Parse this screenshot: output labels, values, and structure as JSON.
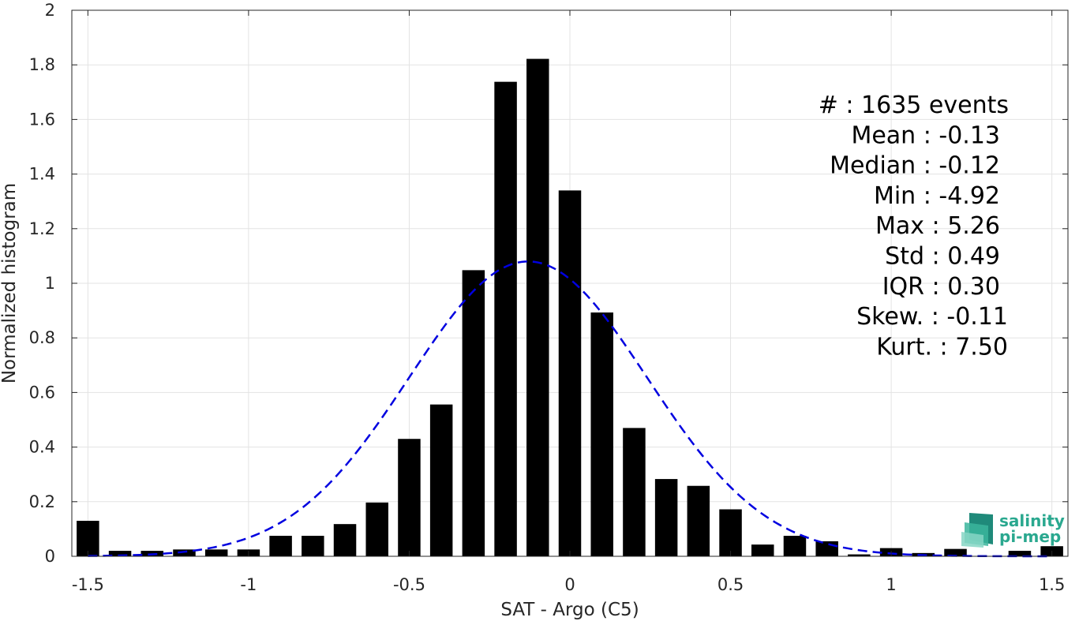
{
  "chart_data": {
    "type": "bar",
    "xlabel": "SAT - Argo (C5)",
    "ylabel": "Normalized histogram",
    "xlim": [
      -1.55,
      1.55
    ],
    "ylim": [
      0,
      2
    ],
    "xticks": [
      -1.5,
      -1,
      -0.5,
      0,
      0.5,
      1,
      1.5
    ],
    "xtick_labels": [
      "-1.5",
      "-1",
      "-0.5",
      "0",
      "0.5",
      "1",
      "1.5"
    ],
    "yticks": [
      0,
      0.2,
      0.4,
      0.6,
      0.8,
      1,
      1.2,
      1.4,
      1.6,
      1.8,
      2
    ],
    "ytick_labels": [
      "0",
      "0.2",
      "0.4",
      "0.6",
      "0.8",
      "1",
      "1.2",
      "1.4",
      "1.6",
      "1.8",
      "2"
    ],
    "grid": true,
    "bar_color": "#000000",
    "bar_width": 0.07,
    "bars": {
      "x": [
        -1.5,
        -1.4,
        -1.3,
        -1.2,
        -1.1,
        -1.0,
        -0.9,
        -0.8,
        -0.7,
        -0.6,
        -0.5,
        -0.4,
        -0.3,
        -0.2,
        -0.1,
        0.0,
        0.1,
        0.2,
        0.3,
        0.4,
        0.5,
        0.6,
        0.7,
        0.8,
        0.9,
        1.0,
        1.1,
        1.2,
        1.3,
        1.4,
        1.5
      ],
      "values": [
        0.13,
        0.02,
        0.02,
        0.025,
        0.025,
        0.025,
        0.075,
        0.075,
        0.118,
        0.197,
        0.43,
        0.556,
        1.048,
        1.738,
        1.822,
        1.34,
        0.893,
        0.47,
        0.283,
        0.258,
        0.172,
        0.043,
        0.075,
        0.055,
        0.007,
        0.03,
        0.012,
        0.027,
        0.0,
        0.02,
        0.037
      ]
    },
    "fit": {
      "type": "normal",
      "mean": -0.13,
      "std": 0.37,
      "peak": 1.08,
      "color": "#0000e0",
      "style": "dashed"
    },
    "stats": [
      {
        "label": "#  ",
        "value": "1635 events"
      },
      {
        "label": "Mean",
        "value": "-0.13"
      },
      {
        "label": "Median",
        "value": "-0.12"
      },
      {
        "label": "Min",
        "value": "-4.92"
      },
      {
        "label": "Max",
        "value": "5.26"
      },
      {
        "label": "Std",
        "value": "0.49"
      },
      {
        "label": "IQR",
        "value": "0.30"
      },
      {
        "label": "Skew.",
        "value": "-0.11"
      },
      {
        "label": "Kurt.",
        "value": "7.50"
      }
    ]
  },
  "logo": {
    "line1": "salinity",
    "line2": "pi-mep"
  }
}
